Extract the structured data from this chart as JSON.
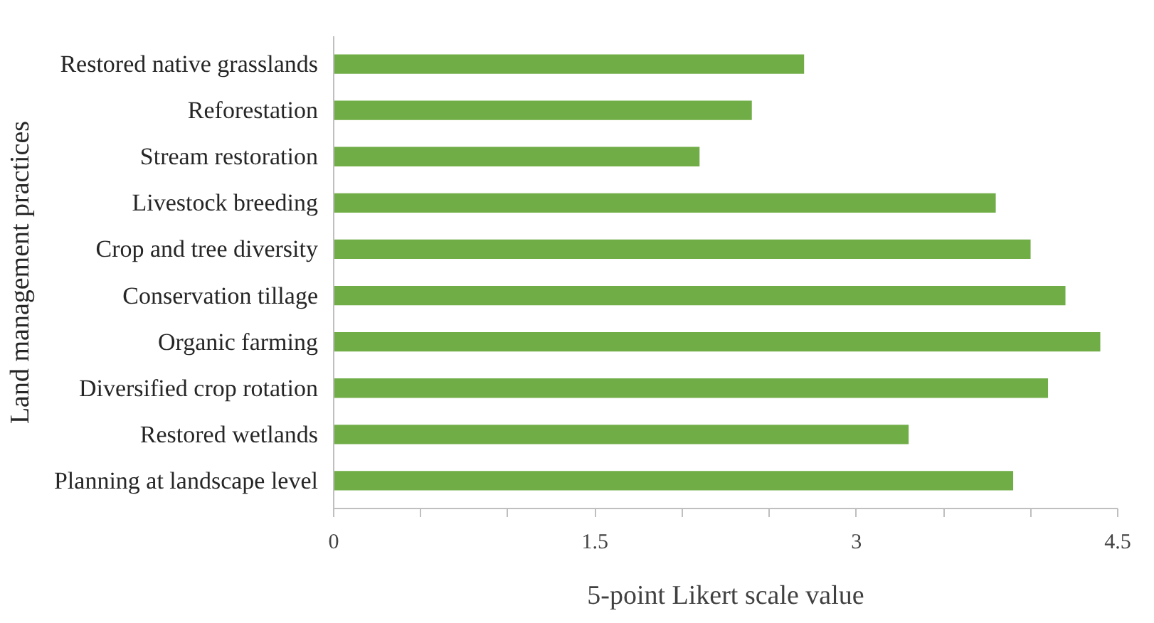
{
  "chart_data": {
    "type": "bar",
    "orientation": "horizontal",
    "xlabel": "5-point Likert scale value",
    "ylabel": "Land management practices",
    "categories": [
      "Restored native grasslands",
      "Reforestation",
      "Stream restoration",
      "Livestock breeding",
      "Crop and tree diversity",
      "Conservation tillage",
      "Organic farming",
      "Diversified crop rotation",
      "Restored wetlands",
      "Planning at landscape level"
    ],
    "values": [
      2.7,
      2.4,
      2.1,
      3.8,
      4.0,
      4.2,
      4.4,
      4.1,
      3.3,
      3.9
    ],
    "color": "#70ad47",
    "xlim": [
      0,
      4.5
    ],
    "xticks": [
      0,
      {
        "value": 0.5,
        "label": null
      },
      {
        "value": 1,
        "label": null
      },
      1.5,
      {
        "value": 2,
        "label": null
      },
      {
        "value": 2.5,
        "label": null
      },
      3,
      {
        "value": 3.5,
        "label": null
      },
      {
        "value": 4,
        "label": null
      },
      4.5
    ]
  }
}
